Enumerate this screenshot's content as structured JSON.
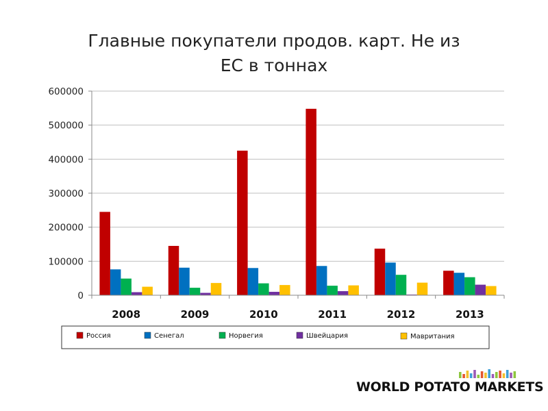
{
  "chart_data": {
    "type": "bar",
    "title_lines": [
      "Главные покупатели продов. карт. Не из",
      "ЕС в тоннах"
    ],
    "categories": [
      "2008",
      "2009",
      "2010",
      "2011",
      "2012",
      "2013"
    ],
    "series": [
      {
        "name": "Россия",
        "color": "#C00000",
        "values": [
          245000,
          145000,
          425000,
          548000,
          137000,
          72000
        ]
      },
      {
        "name": "Сенегал",
        "color": "#0070C0",
        "values": [
          76000,
          81000,
          80000,
          86000,
          96000,
          66000
        ]
      },
      {
        "name": "Норвегия",
        "color": "#00B050",
        "values": [
          49000,
          22000,
          35000,
          28000,
          60000,
          53000
        ]
      },
      {
        "name": "Швейцария",
        "color": "#7030A0",
        "values": [
          9000,
          7000,
          10000,
          12000,
          2000,
          31000
        ]
      },
      {
        "name": "Мавритания",
        "color": "#FFC000",
        "values": [
          25000,
          36000,
          30000,
          29000,
          37000,
          27000
        ]
      }
    ],
    "ylim": [
      0,
      600000
    ],
    "yticks": [
      0,
      100000,
      200000,
      300000,
      400000,
      500000,
      600000
    ],
    "yticklabels": [
      "0",
      "100000",
      "200000",
      "300000",
      "400000",
      "500000",
      "600000"
    ],
    "grid": true,
    "legend_position": "bottom"
  },
  "logo": {
    "text": "WORLD POTATO MARKETS",
    "bar_colors": [
      "#8dc63f",
      "#e4572e",
      "#f2c12e",
      "#3ea0d8",
      "#9b59b6",
      "#8dc63f",
      "#e4572e",
      "#f2c12e",
      "#3ea0d8",
      "#9b59b6",
      "#8dc63f",
      "#e4572e",
      "#f2c12e",
      "#3ea0d8",
      "#9b59b6",
      "#8dc63f"
    ]
  }
}
